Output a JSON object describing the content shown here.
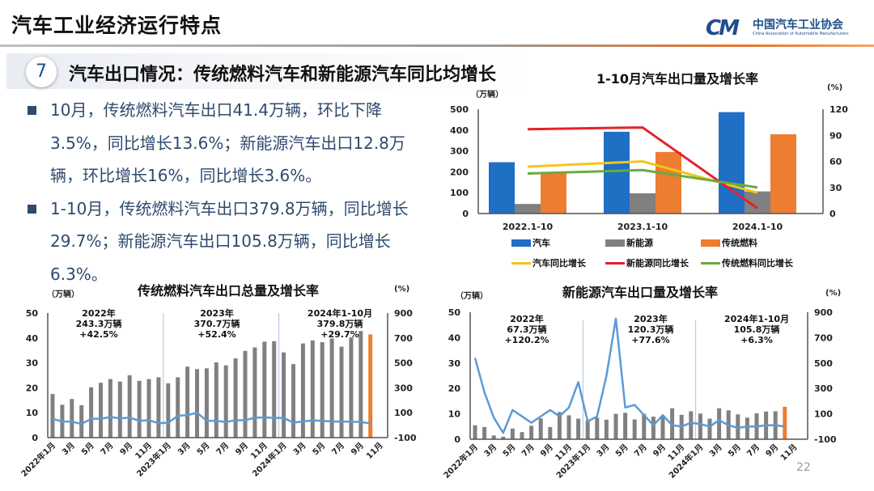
{
  "header": {
    "title": "汽车工业经济运行特点",
    "logo_mark": "CM",
    "logo_cn": "中国汽车工业协会",
    "logo_en": "China Association of Automobile Manufacturers"
  },
  "section": {
    "number": "7",
    "heading": "汽车出口情况：传统燃料汽车和新能源汽车同比均增长"
  },
  "bullets": [
    "10月，传统燃料汽车出口41.4万辆，环比下降3.5%，同比增长13.6%；新能源汽车出口12.8万辆，环比增长16%，同比增长3.6%。",
    "1-10月，传统燃料汽车出口379.8万辆，同比增长29.7%；新能源汽车出口105.8万辆，同比增长6.3%。"
  ],
  "page_number": "22",
  "colors": {
    "blue": "#1f6fc5",
    "gray": "#808080",
    "orange": "#ed7d31",
    "yellow": "#f5c518",
    "red": "#e8202a",
    "green": "#6aab3f",
    "line_blue": "#5b9bd5",
    "text_blue": "#2e4a6e"
  },
  "chart_data": [
    {
      "type": "bar",
      "title": "1-10月汽车出口量及增长率",
      "ylabel": "（万辆）",
      "y2label": "(%)",
      "categories": [
        "2022.1-10",
        "2023.1-10",
        "2024.1-10"
      ],
      "ylim": [
        0,
        500
      ],
      "yticks": [
        0,
        100,
        200,
        300,
        400,
        500
      ],
      "y2lim": [
        0,
        120
      ],
      "y2ticks": [
        0,
        30,
        60,
        90,
        120
      ],
      "grid": false,
      "legend_position": "bottom",
      "series": [
        {
          "name": "汽车",
          "kind": "bar",
          "axis": "left",
          "color": "#1f6fc5",
          "values": [
            246,
            392,
            486
          ]
        },
        {
          "name": "新能源",
          "kind": "bar",
          "axis": "left",
          "color": "#808080",
          "values": [
            46,
            97,
            106
          ]
        },
        {
          "name": "传统燃料",
          "kind": "bar",
          "axis": "left",
          "color": "#ed7d31",
          "values": [
            200,
            295,
            380
          ]
        },
        {
          "name": "汽车同比增长",
          "kind": "line",
          "axis": "right",
          "color": "#f5c518",
          "values": [
            54,
            60,
            24
          ]
        },
        {
          "name": "新能源同比增长",
          "kind": "line",
          "axis": "right",
          "color": "#e8202a",
          "values": [
            97,
            99,
            6
          ]
        },
        {
          "name": "传统燃料同比增长",
          "kind": "line",
          "axis": "right",
          "color": "#6aab3f",
          "values": [
            46,
            50,
            30
          ]
        }
      ]
    },
    {
      "type": "bar",
      "title": "传统燃料汽车出口总量及增长率",
      "ylabel": "（万辆）",
      "y2label": "(%)",
      "ylim": [
        0,
        50
      ],
      "yticks": [
        0,
        10,
        20,
        30,
        40,
        50
      ],
      "y2lim": [
        -100,
        900
      ],
      "y2ticks": [
        -100,
        100,
        300,
        500,
        700,
        900
      ],
      "grid": false,
      "xtick_labels": [
        "2022年1月",
        "3月",
        "5月",
        "7月",
        "9月",
        "11月",
        "2023年1月",
        "3月",
        "5月",
        "7月",
        "9月",
        "11月",
        "2024年1月",
        "3月",
        "5月",
        "7月",
        "9月",
        "11月"
      ],
      "bars": [
        17.5,
        13.2,
        15.5,
        13,
        20.2,
        22,
        23.5,
        22.5,
        25,
        22.8,
        23.5,
        24.2,
        21.8,
        24.2,
        28.5,
        27.5,
        27.8,
        30.2,
        29,
        31.8,
        34.8,
        36.2,
        38.5,
        38.7,
        34.2,
        29.5,
        37.8,
        39,
        38.3,
        39.8,
        36.5,
        40.2,
        42.8,
        41.4
      ],
      "growth": [
        50,
        30,
        28,
        10,
        50,
        52,
        65,
        55,
        60,
        35,
        40,
        15,
        20,
        75,
        80,
        100,
        35,
        35,
        25,
        40,
        40,
        60,
        62,
        58,
        58,
        20,
        30,
        38,
        35,
        30,
        28,
        28,
        25,
        14
      ],
      "highlight_last": true,
      "annotations": [
        {
          "year": "2022年",
          "volume": "243.3万辆",
          "growth": "+42.5%"
        },
        {
          "year": "2023年",
          "volume": "370.7万辆",
          "growth": "+52.4%"
        },
        {
          "year": "2024年1-10月",
          "volume": "379.8万辆",
          "growth": "+29.7%"
        }
      ]
    },
    {
      "type": "bar",
      "title": "新能源汽车出口量及增长率",
      "ylabel": "（万辆）",
      "y2label": "(%)",
      "ylim": [
        0,
        50
      ],
      "yticks": [
        0,
        10,
        20,
        30,
        40,
        50
      ],
      "y2lim": [
        -100,
        900
      ],
      "y2ticks": [
        -100,
        100,
        300,
        500,
        700,
        900
      ],
      "grid": false,
      "xtick_labels": [
        "2022年1月",
        "3月",
        "5月",
        "7月",
        "9月",
        "11月",
        "2023年1月",
        "3月",
        "5月",
        "7月",
        "9月",
        "11月",
        "2024年1月",
        "3月",
        "5月",
        "7月",
        "9月",
        "11月"
      ],
      "bars": [
        5.5,
        4.8,
        1.5,
        1,
        4.2,
        2.8,
        5.3,
        8.2,
        4.8,
        10.7,
        9.4,
        8.1,
        7.4,
        8.5,
        7.7,
        10,
        10.4,
        7.8,
        10,
        8.9,
        9,
        12.2,
        9.6,
        11,
        10.1,
        8.1,
        12.2,
        11.4,
        9.8,
        8.5,
        10.2,
        10.9,
        11,
        12.8
      ],
      "growth": [
        540,
        270,
        70,
        -50,
        130,
        80,
        30,
        80,
        130,
        80,
        150,
        350,
        40,
        80,
        400,
        850,
        150,
        170,
        90,
        10,
        90,
        10,
        0,
        30,
        20,
        0,
        50,
        10,
        -10,
        0,
        0,
        10,
        10,
        0
      ],
      "highlight_last": true,
      "annotations": [
        {
          "year": "2022年",
          "volume": "67.3万辆",
          "growth": "+120.2%"
        },
        {
          "year": "2023年",
          "volume": "120.3万辆",
          "growth": "+77.6%"
        },
        {
          "year": "2024年1-10月",
          "volume": "105.8万辆",
          "growth": "+6.3%"
        }
      ]
    }
  ]
}
